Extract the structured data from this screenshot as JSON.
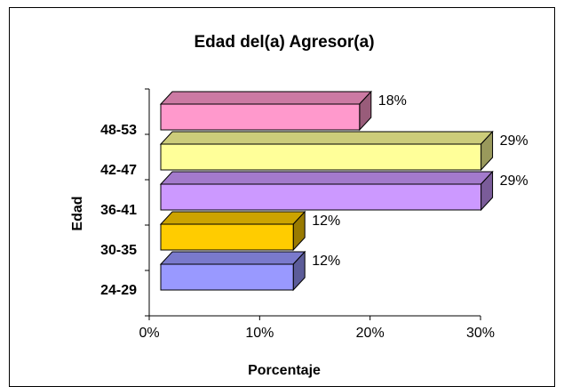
{
  "chart_data": {
    "type": "bar3d_horizontal",
    "title": "Edad del(a) Agresor(a)",
    "x_label": "Porcentaje",
    "y_label": "Edad",
    "categories": [
      "24-29",
      "30-35",
      "36-41",
      "42-47",
      "48-53"
    ],
    "values": [
      12,
      12,
      29,
      29,
      18
    ],
    "value_labels": [
      "12%",
      "12%",
      "29%",
      "29%",
      "18%"
    ],
    "colors": [
      "#9999ff",
      "#ffcc00",
      "#cc99ff",
      "#ffff99",
      "#ff99cc"
    ],
    "xlim": [
      0,
      30
    ],
    "xticks": [
      {
        "value": 0,
        "label": "0%"
      },
      {
        "value": 10,
        "label": "10%"
      },
      {
        "value": 20,
        "label": "20%"
      },
      {
        "value": 30,
        "label": "30%"
      }
    ]
  }
}
